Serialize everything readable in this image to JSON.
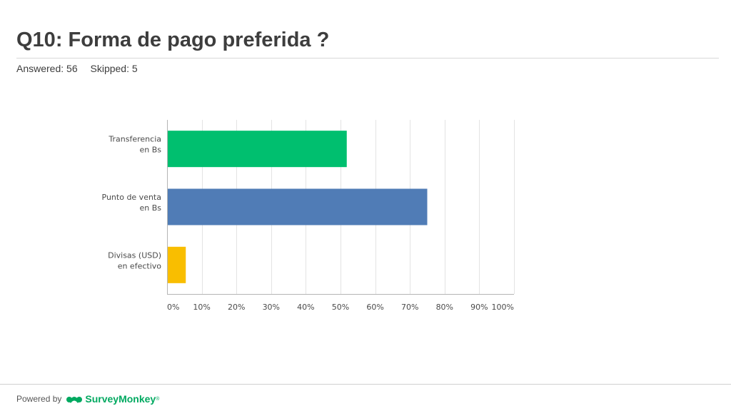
{
  "header": {
    "title": "Q10: Forma de pago preferida ?",
    "answered": "Answered: 56",
    "skipped": "Skipped: 5"
  },
  "footer": {
    "powered_by": "Powered by",
    "brand": "SurveyMonkey",
    "brand_mark": "®",
    "logo_icon": "surveymonkey-logo-icon"
  },
  "colors": {
    "green": "#00bf6f",
    "blue": "#507cb6",
    "yellow": "#f9be00",
    "brand": "#00a960"
  },
  "chart_data": {
    "type": "bar",
    "orientation": "horizontal",
    "categories": [
      [
        "Transferencia",
        "en Bs"
      ],
      [
        "Punto de venta",
        "en Bs"
      ],
      [
        "Divisas (USD)",
        "en efectivo"
      ]
    ],
    "values": [
      51.8,
      75.0,
      5.4
    ],
    "bar_colors": [
      "#00bf6f",
      "#507cb6",
      "#f9be00"
    ],
    "xlim": [
      0,
      100
    ],
    "ticks": [
      "0%",
      "10%",
      "20%",
      "30%",
      "40%",
      "50%",
      "60%",
      "70%",
      "80%",
      "90%",
      "100%"
    ],
    "grid": true,
    "title": "",
    "xlabel": "",
    "ylabel": ""
  }
}
